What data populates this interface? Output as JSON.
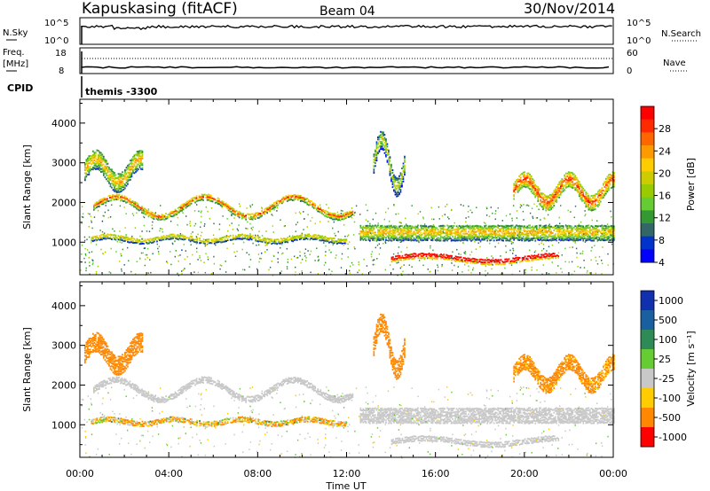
{
  "header": {
    "station": "Kapuskasing (fitACF)",
    "beam": "Beam 04",
    "date": "30/Nov/2014"
  },
  "noise_panel": {
    "left_label": "N.Sky",
    "left_ticks": [
      "10^5",
      "10^0"
    ],
    "right_ticks": [
      "10^5",
      "10^0"
    ],
    "right_label": "N.Search"
  },
  "freq_panel": {
    "left_label_1": "Freq.",
    "left_label_2": "[MHz]",
    "left_ticks": [
      "18",
      "8"
    ],
    "right_ticks": [
      "60",
      "0"
    ],
    "right_label": "Nave"
  },
  "cpid": {
    "label": "CPID",
    "value": "themis -3300"
  },
  "power_colorbar": {
    "label": "Power [dB]",
    "ticks": [
      "28",
      "24",
      "20",
      "16",
      "12",
      "8",
      "4"
    ],
    "colors": [
      "#ff0000",
      "#ff2a00",
      "#ff6600",
      "#ff9900",
      "#ffcc00",
      "#cccc00",
      "#99cc00",
      "#66cc33",
      "#339933",
      "#336666",
      "#0033cc",
      "#0000ff"
    ]
  },
  "velocity_colorbar": {
    "label": "Velocity [m s⁻¹]",
    "ticks": [
      "1000",
      "500",
      "100",
      "25",
      "-25",
      "-100",
      "-500",
      "-1000"
    ],
    "colors": [
      "#1030b0",
      "#1a5fa0",
      "#2e8b57",
      "#66cc33",
      "#c8c8c8",
      "#ffcc00",
      "#ff8800",
      "#ff0000"
    ]
  },
  "x_axis": {
    "label": "Time UT",
    "ticks": [
      "00:00",
      "04:00",
      "08:00",
      "12:00",
      "16:00",
      "20:00",
      "00:00"
    ]
  },
  "y_axis": {
    "label": "Slant Range [km]",
    "ticks": [
      "4000",
      "3000",
      "2000",
      "1000"
    ]
  },
  "chart_data": {
    "type": "heatmap",
    "x_range_hours": [
      0,
      24
    ],
    "y_range_km": [
      180,
      4600
    ],
    "grid": false,
    "bands": [
      {
        "name": "oscillating-band",
        "t0": 0.6,
        "t1": 12.3,
        "base_km": 1900,
        "amp_km": 250,
        "period_h": 4.0,
        "width_km": 160,
        "power_db": 18,
        "velocity_ms": 0
      },
      {
        "name": "lower-band",
        "t0": 0.5,
        "t1": 12.0,
        "base_km": 1100,
        "amp_km": 60,
        "period_h": 3.0,
        "width_km": 140,
        "power_db": 14,
        "velocity_ms": -80
      },
      {
        "name": "post-midnight-bands",
        "t0": 12.6,
        "t1": 24.0,
        "base_km": 1250,
        "amp_km": 0,
        "period_h": 1,
        "width_km": 400,
        "power_db": 14,
        "velocity_ms": 0
      },
      {
        "name": "low-range-echoes",
        "t0": 14.0,
        "t1": 21.5,
        "base_km": 600,
        "amp_km": 80,
        "period_h": 6.0,
        "width_km": 150,
        "power_db": 28,
        "velocity_ms": 0
      },
      {
        "name": "early-high-echoes",
        "t0": 0.2,
        "t1": 2.8,
        "base_km": 2800,
        "amp_km": 300,
        "period_h": 2.0,
        "width_km": 500,
        "power_db": 14,
        "velocity_ms": -300
      },
      {
        "name": "plume-1330",
        "t0": 13.2,
        "t1": 14.6,
        "base_km": 3000,
        "amp_km": 600,
        "period_h": 1.4,
        "width_km": 500,
        "power_db": 10,
        "velocity_ms": -300
      },
      {
        "name": "late-high-echoes",
        "t0": 19.5,
        "t1": 24.0,
        "base_km": 2300,
        "amp_km": 300,
        "period_h": 2.0,
        "width_km": 400,
        "power_db": 20,
        "velocity_ms": -200
      }
    ]
  }
}
